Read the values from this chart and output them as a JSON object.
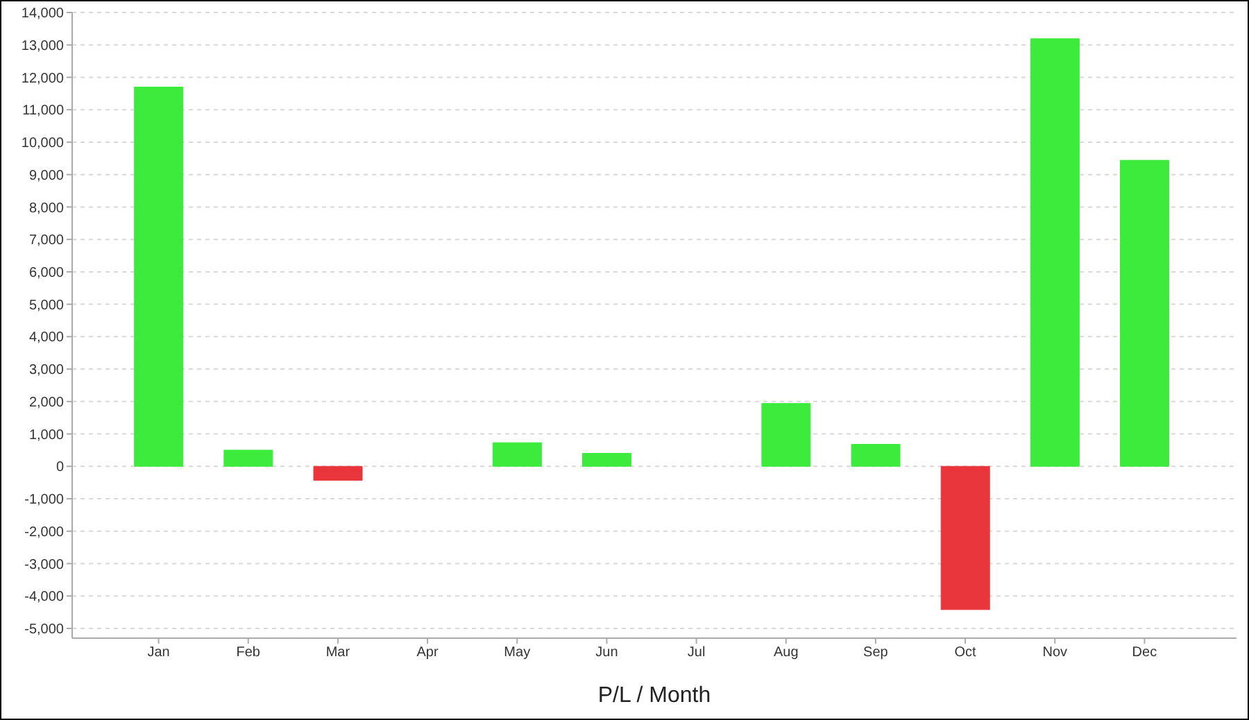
{
  "chart_data": {
    "type": "bar",
    "xlabel": "P/L / Month",
    "categories": [
      "Jan",
      "Feb",
      "Mar",
      "Apr",
      "May",
      "Jun",
      "Jul",
      "Aug",
      "Sep",
      "Oct",
      "Nov",
      "Dec"
    ],
    "values": [
      11700,
      500,
      -430,
      0,
      730,
      400,
      0,
      1940,
      680,
      -4420,
      13190,
      9440
    ],
    "colors": [
      "#3deb3d",
      "#3deb3d",
      "#e8363c",
      "#3deb3d",
      "#3deb3d",
      "#3deb3d",
      "#3deb3d",
      "#3deb3d",
      "#3deb3d",
      "#e8363c",
      "#3deb3d",
      "#3deb3d"
    ],
    "ylim": [
      -5300,
      14000
    ],
    "yticks": [
      {
        "value": -5000,
        "label": "-5,000"
      },
      {
        "value": -4000,
        "label": "-4,000"
      },
      {
        "value": -3000,
        "label": "-3,000"
      },
      {
        "value": -2000,
        "label": "-2,000"
      },
      {
        "value": -1000,
        "label": "-1,000"
      },
      0,
      {
        "value": 1000,
        "label": "1,000"
      },
      {
        "value": 2000,
        "label": "2,000"
      },
      {
        "value": 3000,
        "label": "3,000"
      },
      {
        "value": 4000,
        "label": "4,000"
      },
      {
        "value": 5000,
        "label": "5,000"
      },
      {
        "value": 6000,
        "label": "6,000"
      },
      {
        "value": 7000,
        "label": "7,000"
      },
      {
        "value": 8000,
        "label": "8,000"
      },
      {
        "value": 9000,
        "label": "9,000"
      },
      {
        "value": 10000,
        "label": "10,000"
      },
      {
        "value": 11000,
        "label": "11,000"
      },
      {
        "value": 12000,
        "label": "12,000"
      },
      {
        "value": 13000,
        "label": "13,000"
      },
      {
        "value": 14000,
        "label": "14,000"
      }
    ],
    "grid": "y"
  }
}
